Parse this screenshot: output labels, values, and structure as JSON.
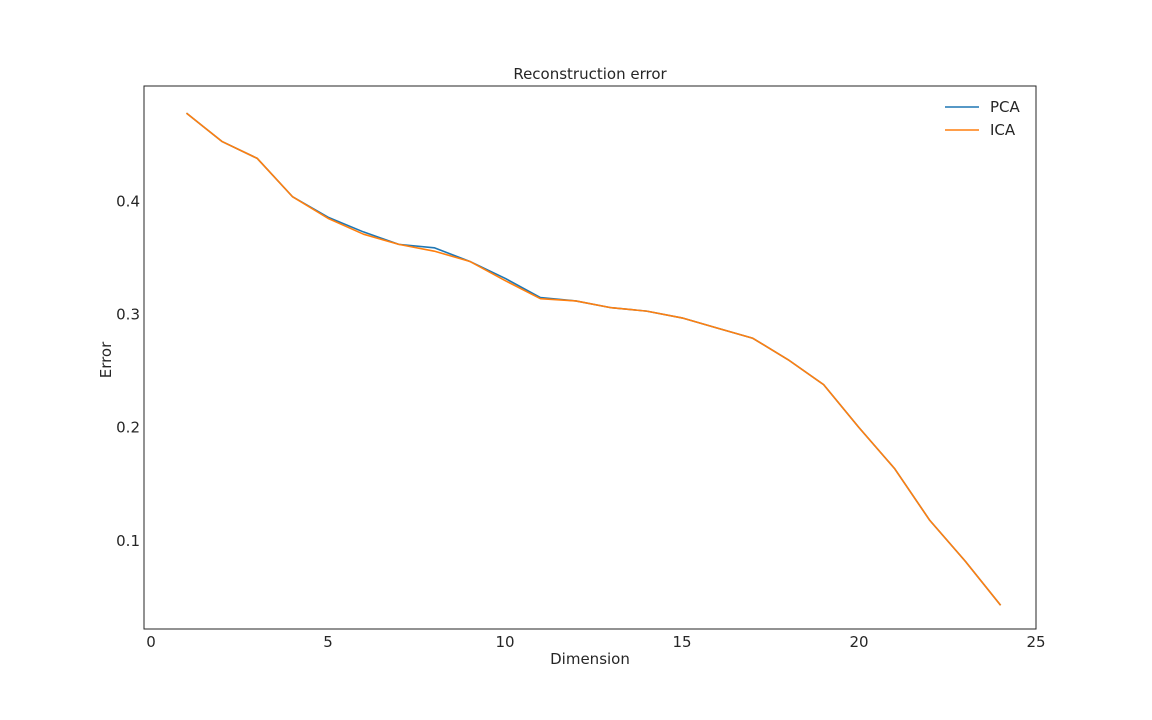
{
  "chart_data": {
    "type": "line",
    "title": "Reconstruction error",
    "xlabel": "Dimension",
    "ylabel": "Error",
    "xlim": [
      -0.2,
      25
    ],
    "ylim": [
      0.022,
      0.502
    ],
    "xticks": [
      0,
      5,
      10,
      15,
      20,
      25
    ],
    "yticks": [
      0.1,
      0.2,
      0.3,
      0.4
    ],
    "grid": false,
    "legend_position": "top-right",
    "x": [
      1,
      2,
      3,
      4,
      5,
      6,
      7,
      8,
      9,
      10,
      11,
      12,
      13,
      14,
      15,
      16,
      17,
      18,
      19,
      20,
      21,
      22,
      23,
      24
    ],
    "series": [
      {
        "name": "PCA",
        "color": "#1f77b4",
        "values": [
          0.478,
          0.453,
          0.438,
          0.404,
          0.386,
          0.373,
          0.362,
          0.359,
          0.347,
          0.332,
          0.315,
          0.312,
          0.306,
          0.303,
          0.297,
          0.288,
          0.279,
          0.26,
          0.238,
          0.2,
          0.164,
          0.118,
          0.082,
          0.043
        ]
      },
      {
        "name": "ICA",
        "color": "#ff7f0e",
        "values": [
          0.478,
          0.453,
          0.438,
          0.404,
          0.385,
          0.371,
          0.362,
          0.356,
          0.347,
          0.33,
          0.314,
          0.312,
          0.306,
          0.303,
          0.297,
          0.288,
          0.279,
          0.26,
          0.238,
          0.2,
          0.164,
          0.118,
          0.082,
          0.043
        ]
      }
    ]
  }
}
